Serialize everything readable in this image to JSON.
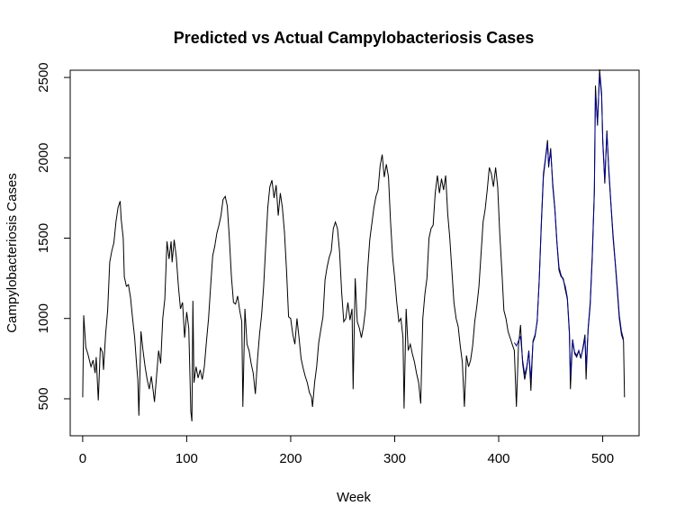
{
  "chart_data": {
    "type": "line",
    "title": "Predicted vs Actual Campylobacteriosis Cases",
    "xlabel": "Week",
    "ylabel": "Campylobacteriosis Cases",
    "xlim": [
      -12,
      535
    ],
    "ylim": [
      270,
      2545
    ],
    "xticks": [
      0,
      100,
      200,
      300,
      400,
      500
    ],
    "yticks": [
      500,
      1000,
      1500,
      2000,
      2500
    ],
    "grid": false,
    "series": [
      {
        "color": "#000000",
        "points": [
          [
            0,
            510
          ],
          [
            1,
            1020
          ],
          [
            3,
            820
          ],
          [
            5,
            780
          ],
          [
            8,
            700
          ],
          [
            10,
            740
          ],
          [
            12,
            660
          ],
          [
            13,
            760
          ],
          [
            15,
            490
          ],
          [
            17,
            820
          ],
          [
            19,
            790
          ],
          [
            20,
            680
          ],
          [
            22,
            900
          ],
          [
            24,
            1050
          ],
          [
            26,
            1350
          ],
          [
            28,
            1420
          ],
          [
            30,
            1470
          ],
          [
            32,
            1600
          ],
          [
            34,
            1690
          ],
          [
            36,
            1730
          ],
          [
            37,
            1620
          ],
          [
            39,
            1500
          ],
          [
            40,
            1260
          ],
          [
            42,
            1200
          ],
          [
            44,
            1210
          ],
          [
            46,
            1130
          ],
          [
            48,
            1000
          ],
          [
            50,
            880
          ],
          [
            52,
            700
          ],
          [
            53,
            620
          ],
          [
            54,
            395
          ],
          [
            56,
            920
          ],
          [
            58,
            800
          ],
          [
            60,
            700
          ],
          [
            62,
            620
          ],
          [
            64,
            560
          ],
          [
            66,
            640
          ],
          [
            68,
            540
          ],
          [
            69,
            480
          ],
          [
            71,
            640
          ],
          [
            73,
            800
          ],
          [
            75,
            720
          ],
          [
            77,
            1000
          ],
          [
            79,
            1120
          ],
          [
            81,
            1480
          ],
          [
            83,
            1370
          ],
          [
            85,
            1480
          ],
          [
            86,
            1350
          ],
          [
            88,
            1490
          ],
          [
            90,
            1380
          ],
          [
            92,
            1200
          ],
          [
            94,
            1060
          ],
          [
            96,
            1100
          ],
          [
            98,
            880
          ],
          [
            100,
            1040
          ],
          [
            102,
            940
          ],
          [
            104,
            420
          ],
          [
            105,
            360
          ],
          [
            106,
            1110
          ],
          [
            107,
            600
          ],
          [
            109,
            700
          ],
          [
            111,
            630
          ],
          [
            113,
            680
          ],
          [
            115,
            620
          ],
          [
            117,
            700
          ],
          [
            119,
            860
          ],
          [
            121,
            1000
          ],
          [
            123,
            1200
          ],
          [
            125,
            1390
          ],
          [
            127,
            1450
          ],
          [
            129,
            1530
          ],
          [
            131,
            1580
          ],
          [
            133,
            1640
          ],
          [
            135,
            1740
          ],
          [
            137,
            1760
          ],
          [
            139,
            1700
          ],
          [
            141,
            1500
          ],
          [
            143,
            1260
          ],
          [
            145,
            1100
          ],
          [
            147,
            1090
          ],
          [
            149,
            1140
          ],
          [
            151,
            1050
          ],
          [
            153,
            980
          ],
          [
            154,
            450
          ],
          [
            156,
            1060
          ],
          [
            158,
            840
          ],
          [
            160,
            800
          ],
          [
            162,
            720
          ],
          [
            164,
            660
          ],
          [
            166,
            530
          ],
          [
            168,
            740
          ],
          [
            170,
            900
          ],
          [
            172,
            1020
          ],
          [
            174,
            1200
          ],
          [
            176,
            1450
          ],
          [
            178,
            1690
          ],
          [
            180,
            1820
          ],
          [
            182,
            1860
          ],
          [
            184,
            1750
          ],
          [
            186,
            1830
          ],
          [
            188,
            1640
          ],
          [
            190,
            1780
          ],
          [
            192,
            1690
          ],
          [
            194,
            1540
          ],
          [
            196,
            1300
          ],
          [
            198,
            1010
          ],
          [
            200,
            1000
          ],
          [
            202,
            900
          ],
          [
            204,
            840
          ],
          [
            206,
            1000
          ],
          [
            208,
            880
          ],
          [
            210,
            750
          ],
          [
            212,
            690
          ],
          [
            214,
            640
          ],
          [
            216,
            600
          ],
          [
            218,
            540
          ],
          [
            220,
            510
          ],
          [
            221,
            450
          ],
          [
            223,
            600
          ],
          [
            225,
            700
          ],
          [
            227,
            850
          ],
          [
            229,
            930
          ],
          [
            231,
            1010
          ],
          [
            233,
            1240
          ],
          [
            235,
            1320
          ],
          [
            237,
            1380
          ],
          [
            239,
            1420
          ],
          [
            241,
            1560
          ],
          [
            243,
            1600
          ],
          [
            245,
            1560
          ],
          [
            247,
            1420
          ],
          [
            249,
            1160
          ],
          [
            251,
            980
          ],
          [
            253,
            1000
          ],
          [
            255,
            1100
          ],
          [
            257,
            990
          ],
          [
            259,
            1060
          ],
          [
            260,
            560
          ],
          [
            262,
            1250
          ],
          [
            264,
            980
          ],
          [
            266,
            940
          ],
          [
            268,
            880
          ],
          [
            270,
            950
          ],
          [
            272,
            1060
          ],
          [
            274,
            1300
          ],
          [
            276,
            1490
          ],
          [
            278,
            1590
          ],
          [
            280,
            1690
          ],
          [
            282,
            1760
          ],
          [
            284,
            1800
          ],
          [
            286,
            1950
          ],
          [
            288,
            2020
          ],
          [
            290,
            1880
          ],
          [
            292,
            1960
          ],
          [
            294,
            1880
          ],
          [
            296,
            1600
          ],
          [
            298,
            1380
          ],
          [
            300,
            1250
          ],
          [
            302,
            1100
          ],
          [
            304,
            980
          ],
          [
            306,
            1000
          ],
          [
            308,
            880
          ],
          [
            309,
            440
          ],
          [
            311,
            1060
          ],
          [
            313,
            800
          ],
          [
            315,
            840
          ],
          [
            317,
            780
          ],
          [
            319,
            730
          ],
          [
            321,
            660
          ],
          [
            323,
            600
          ],
          [
            325,
            470
          ],
          [
            327,
            1000
          ],
          [
            329,
            1150
          ],
          [
            331,
            1250
          ],
          [
            333,
            1500
          ],
          [
            335,
            1560
          ],
          [
            337,
            1580
          ],
          [
            339,
            1780
          ],
          [
            341,
            1890
          ],
          [
            343,
            1780
          ],
          [
            345,
            1870
          ],
          [
            347,
            1800
          ],
          [
            349,
            1890
          ],
          [
            351,
            1650
          ],
          [
            353,
            1500
          ],
          [
            355,
            1300
          ],
          [
            357,
            1100
          ],
          [
            359,
            1000
          ],
          [
            361,
            950
          ],
          [
            363,
            830
          ],
          [
            365,
            730
          ],
          [
            367,
            450
          ],
          [
            369,
            770
          ],
          [
            371,
            700
          ],
          [
            373,
            740
          ],
          [
            375,
            830
          ],
          [
            377,
            980
          ],
          [
            379,
            1080
          ],
          [
            381,
            1200
          ],
          [
            383,
            1400
          ],
          [
            385,
            1600
          ],
          [
            387,
            1680
          ],
          [
            389,
            1800
          ],
          [
            391,
            1940
          ],
          [
            393,
            1900
          ],
          [
            395,
            1820
          ],
          [
            397,
            1940
          ],
          [
            399,
            1820
          ],
          [
            401,
            1530
          ],
          [
            403,
            1300
          ],
          [
            405,
            1050
          ],
          [
            407,
            1000
          ],
          [
            409,
            920
          ],
          [
            411,
            880
          ],
          [
            413,
            840
          ],
          [
            415,
            800
          ],
          [
            417,
            450
          ],
          [
            419,
            830
          ],
          [
            421,
            960
          ],
          [
            423,
            720
          ],
          [
            425,
            620
          ],
          [
            427,
            690
          ],
          [
            429,
            800
          ],
          [
            431,
            550
          ],
          [
            433,
            860
          ],
          [
            435,
            900
          ],
          [
            437,
            980
          ],
          [
            439,
            1250
          ],
          [
            441,
            1600
          ],
          [
            443,
            1900
          ],
          [
            445,
            2000
          ],
          [
            447,
            2110
          ],
          [
            448,
            1940
          ],
          [
            450,
            2060
          ],
          [
            452,
            1820
          ],
          [
            454,
            1680
          ],
          [
            456,
            1470
          ],
          [
            458,
            1300
          ],
          [
            460,
            1260
          ],
          [
            462,
            1250
          ],
          [
            464,
            1180
          ],
          [
            466,
            1120
          ],
          [
            468,
            900
          ],
          [
            469,
            560
          ],
          [
            471,
            870
          ],
          [
            473,
            780
          ],
          [
            475,
            760
          ],
          [
            477,
            800
          ],
          [
            479,
            750
          ],
          [
            481,
            820
          ],
          [
            483,
            900
          ],
          [
            484,
            620
          ],
          [
            486,
            940
          ],
          [
            488,
            1100
          ],
          [
            490,
            1400
          ],
          [
            492,
            1800
          ],
          [
            493,
            2450
          ],
          [
            495,
            2200
          ],
          [
            497,
            2550
          ],
          [
            499,
            2400
          ],
          [
            500,
            2100
          ],
          [
            502,
            1840
          ],
          [
            504,
            2170
          ],
          [
            506,
            1900
          ],
          [
            508,
            1700
          ],
          [
            510,
            1500
          ],
          [
            512,
            1350
          ],
          [
            514,
            1180
          ],
          [
            516,
            1000
          ],
          [
            518,
            900
          ],
          [
            520,
            860
          ],
          [
            521,
            510
          ]
        ]
      },
      {
        "color": "#00008B",
        "points": [
          [
            415,
            850
          ],
          [
            417,
            830
          ],
          [
            419,
            860
          ],
          [
            421,
            890
          ],
          [
            423,
            740
          ],
          [
            425,
            650
          ],
          [
            427,
            700
          ],
          [
            429,
            790
          ],
          [
            431,
            620
          ],
          [
            433,
            850
          ],
          [
            435,
            890
          ],
          [
            437,
            990
          ],
          [
            439,
            1240
          ],
          [
            441,
            1580
          ],
          [
            443,
            1880
          ],
          [
            445,
            1990
          ],
          [
            447,
            2090
          ],
          [
            448,
            1960
          ],
          [
            450,
            2040
          ],
          [
            452,
            1840
          ],
          [
            454,
            1690
          ],
          [
            456,
            1480
          ],
          [
            458,
            1320
          ],
          [
            460,
            1270
          ],
          [
            462,
            1240
          ],
          [
            464,
            1200
          ],
          [
            466,
            1130
          ],
          [
            468,
            920
          ],
          [
            469,
            640
          ],
          [
            471,
            860
          ],
          [
            473,
            790
          ],
          [
            475,
            770
          ],
          [
            477,
            800
          ],
          [
            479,
            760
          ],
          [
            481,
            810
          ],
          [
            483,
            880
          ],
          [
            484,
            700
          ],
          [
            486,
            930
          ],
          [
            488,
            1080
          ],
          [
            490,
            1380
          ],
          [
            492,
            1780
          ],
          [
            493,
            2400
          ],
          [
            495,
            2220
          ],
          [
            497,
            2520
          ],
          [
            499,
            2380
          ],
          [
            500,
            2120
          ],
          [
            502,
            1860
          ],
          [
            504,
            2150
          ],
          [
            506,
            1920
          ],
          [
            508,
            1710
          ],
          [
            510,
            1520
          ],
          [
            512,
            1360
          ],
          [
            514,
            1200
          ],
          [
            516,
            1020
          ],
          [
            518,
            920
          ],
          [
            520,
            870
          ]
        ]
      }
    ]
  }
}
